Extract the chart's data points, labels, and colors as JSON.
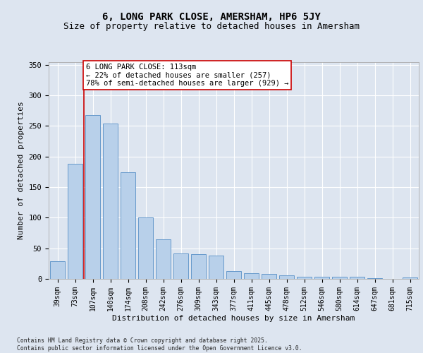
{
  "title1": "6, LONG PARK CLOSE, AMERSHAM, HP6 5JY",
  "title2": "Size of property relative to detached houses in Amersham",
  "xlabel": "Distribution of detached houses by size in Amersham",
  "ylabel": "Number of detached properties",
  "categories": [
    "39sqm",
    "73sqm",
    "107sqm",
    "140sqm",
    "174sqm",
    "208sqm",
    "242sqm",
    "276sqm",
    "309sqm",
    "343sqm",
    "377sqm",
    "411sqm",
    "445sqm",
    "478sqm",
    "512sqm",
    "546sqm",
    "580sqm",
    "614sqm",
    "647sqm",
    "681sqm",
    "715sqm"
  ],
  "values": [
    29,
    188,
    268,
    254,
    174,
    100,
    65,
    42,
    40,
    38,
    13,
    9,
    8,
    6,
    4,
    4,
    3,
    3,
    1,
    0,
    2
  ],
  "bar_color": "#b8d0ea",
  "bar_edge_color": "#6699cc",
  "vline_x": 1.5,
  "vline_color": "#cc0000",
  "annotation_text": "6 LONG PARK CLOSE: 113sqm\n← 22% of detached houses are smaller (257)\n78% of semi-detached houses are larger (929) →",
  "annotation_box_color": "#ffffff",
  "annotation_box_edge": "#cc0000",
  "background_color": "#dde5f0",
  "plot_bg_color": "#dde5f0",
  "ylim": [
    0,
    355
  ],
  "yticks": [
    0,
    50,
    100,
    150,
    200,
    250,
    300,
    350
  ],
  "footer_text": "Contains HM Land Registry data © Crown copyright and database right 2025.\nContains public sector information licensed under the Open Government Licence v3.0.",
  "title_fontsize": 10,
  "subtitle_fontsize": 9,
  "ylabel_fontsize": 8,
  "xlabel_fontsize": 8,
  "tick_fontsize": 7,
  "annot_fontsize": 7.5
}
